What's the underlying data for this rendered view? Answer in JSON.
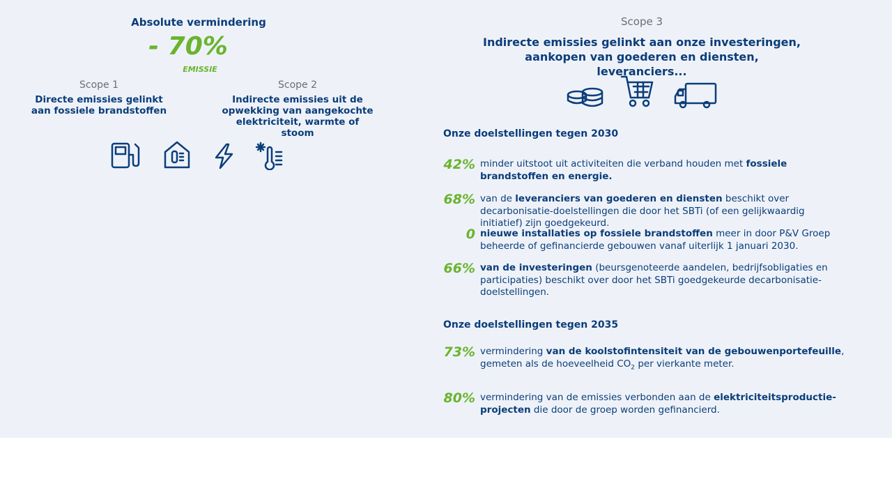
{
  "left": {
    "heading": "Absolute vermindering",
    "reduction": "- 70%",
    "reduction_label": "EMISSIE",
    "scopes": [
      {
        "name": "Scope 1",
        "description": "Directe emissies gelinkt aan fossiele brandstoffen"
      },
      {
        "name": "Scope 2",
        "description": "Indirecte emissies uit de opwekking van aangekochte elektriciteit, warmte of stoom"
      }
    ]
  },
  "right": {
    "scope": "Scope 3",
    "title": "Indirecte emissies gelinkt aan onze investeringen, aankopen van goederen en diensten, leveranciers...",
    "sections": [
      {
        "heading": "Onze doelstellingen tegen 2030",
        "targets": [
          {
            "value": "42%",
            "parts": [
              {
                "text": "minder uitstoot uit activiteiten die verband houden met ",
                "bold": false
              },
              {
                "text": "fossiele brandstoffen en energie.",
                "bold": true
              }
            ]
          },
          {
            "value": "68%",
            "parts": [
              {
                "text": "van de ",
                "bold": false
              },
              {
                "text": "leveranciers van goederen en diensten",
                "bold": true
              },
              {
                "text": " beschikt over decarbonisatie-doelstellingen die door het SBTi (of een gelijkwaardig initiatief) zijn goedgekeurd.",
                "bold": false
              }
            ]
          },
          {
            "value": "0",
            "parts": [
              {
                "text": "nieuwe installaties op fossiele brandstoffen",
                "bold": true
              },
              {
                "text": " meer in door P&V Groep beheerde of gefinancierde gebouwen vanaf uiterlijk 1 januari 2030.",
                "bold": false
              }
            ]
          },
          {
            "value": "66%",
            "parts": [
              {
                "text": "van de investeringen",
                "bold": true
              },
              {
                "text": " (beursgenoteerde aandelen, bedrijfsobligaties en participaties) beschikt over door het SBTi goedgekeurde decarbonisatie-doelstellingen.",
                "bold": false
              }
            ]
          }
        ]
      },
      {
        "heading": "Onze doelstellingen tegen 2035",
        "targets": [
          {
            "value": "73%",
            "parts": [
              {
                "text": "vermindering ",
                "bold": false
              },
              {
                "text": "van de koolstofintensiteit van de gebouwenportefeuille",
                "bold": true
              },
              {
                "text": ", gemeten als de hoeveelheid CO",
                "bold": false
              },
              {
                "text": "2",
                "bold": false,
                "sub": true
              },
              {
                "text": " per vierkante meter.",
                "bold": false
              }
            ]
          },
          {
            "value": "80%",
            "parts": [
              {
                "text": "vermindering van de emissies verbonden aan de ",
                "bold": false
              },
              {
                "text": "elektriciteitsproductie-projecten",
                "bold": true
              },
              {
                "text": " die door de groep worden gefinancierd.",
                "bold": false
              }
            ]
          }
        ]
      }
    ]
  }
}
